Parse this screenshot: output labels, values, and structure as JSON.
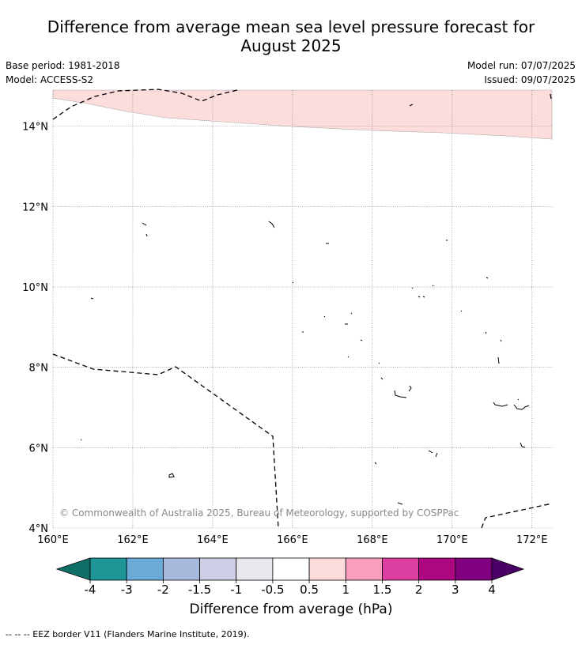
{
  "header": {
    "title_line1": "Difference from average mean sea level pressure forecast for",
    "title_line2": "August 2025",
    "base_period": "Base period: 1981-2018",
    "model": "Model: ACCESS-S2",
    "model_run": "Model run: 07/07/2025",
    "issued": "Issued: 09/07/2025"
  },
  "map": {
    "lon_range": [
      160,
      172.5
    ],
    "lat_range": [
      4,
      14.9
    ],
    "x_ticks": [
      "160°E",
      "162°E",
      "164°E",
      "166°E",
      "168°E",
      "170°E",
      "172°E"
    ],
    "y_ticks": [
      "4°N",
      "6°N",
      "8°N",
      "10°N",
      "12°N",
      "14°N"
    ],
    "grid": true,
    "copyright": "© Commonwealth of Australia 2025, Bureau of Meteorology, supported by COSPPac",
    "anomaly_region": {
      "category": "0.5 to 1",
      "color": "#fddcdc"
    }
  },
  "colorbar": {
    "title": "Difference from average (hPa)",
    "tick_labels": [
      "-4",
      "-3",
      "-2",
      "-1.5",
      "-1",
      "-0.5",
      "0.5",
      "1",
      "1.5",
      "2",
      "3",
      "4"
    ],
    "colors": [
      "#0f6e68",
      "#1e9597",
      "#69aad6",
      "#a7b8dd",
      "#cccfe6",
      "#e9e8ed",
      "#ffffff",
      "#fddcdc",
      "#f79fbd",
      "#dd3fa0",
      "#ad0681",
      "#800080",
      "#4b0068"
    ]
  },
  "legend": {
    "eez_label": "--  --  -- EEZ border V11 (Flanders Marine Institute, 2019)."
  }
}
